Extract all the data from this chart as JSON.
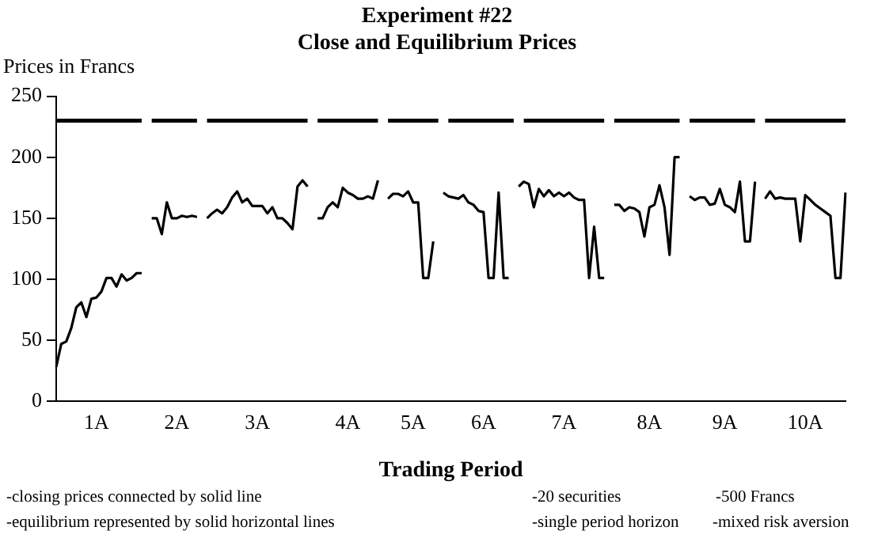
{
  "chart_data": {
    "type": "line",
    "title": "Experiment #22",
    "subtitle": "Close and Equilibrium Prices",
    "ylabel": "Prices in Francs",
    "xlabel": "Trading Period",
    "categories": [
      null,
      null,
      null,
      null,
      null,
      null,
      null,
      null,
      "1A",
      null,
      null,
      null,
      null,
      null,
      null,
      null,
      null,
      null,
      null,
      null,
      null,
      null,
      null,
      null,
      "2A",
      null,
      null,
      null,
      null,
      null,
      null,
      null,
      null,
      null,
      null,
      null,
      null,
      null,
      null,
      null,
      "3A",
      null,
      null,
      null,
      null,
      null,
      null,
      null,
      null,
      null,
      null,
      null,
      null,
      null,
      null,
      null,
      null,
      null,
      "4A",
      null,
      null,
      null,
      null,
      null,
      null,
      null,
      null,
      null,
      null,
      null,
      null,
      "5A",
      null,
      null,
      null,
      null,
      null,
      null,
      null,
      null,
      null,
      null,
      null,
      null,
      null,
      "6A",
      null,
      null,
      null,
      null,
      null,
      null,
      null,
      null,
      null,
      null,
      null,
      null,
      null,
      null,
      null,
      "7A",
      null,
      null,
      null,
      null,
      null,
      null,
      null,
      null,
      null,
      null,
      null,
      null,
      null,
      null,
      null,
      null,
      "8A",
      null,
      null,
      null,
      null,
      null,
      null,
      null,
      null,
      null,
      null,
      null,
      null,
      null,
      null,
      "9A",
      null,
      null,
      null,
      null,
      null,
      null,
      null,
      null,
      null,
      null,
      null,
      null,
      null,
      null,
      null,
      "10A",
      null,
      null,
      null,
      null,
      null,
      null,
      null,
      null
    ],
    "ylim": [
      0,
      250
    ],
    "yticks": [
      0,
      50,
      100,
      150,
      200,
      250
    ],
    "grid": false,
    "legend": false,
    "marker": "none",
    "line_style": "solid",
    "series": [
      {
        "color": "#000000",
        "values": [
          230,
          230,
          230,
          230,
          230,
          230,
          230,
          230,
          230,
          230,
          230,
          230,
          230,
          230,
          230,
          230,
          230,
          230,
          null,
          230,
          230,
          230,
          230,
          230,
          230,
          230,
          230,
          230,
          230,
          null,
          230,
          230,
          230,
          230,
          230,
          230,
          230,
          230,
          230,
          230,
          230,
          230,
          230,
          230,
          230,
          230,
          230,
          230,
          230,
          230,
          230,
          null,
          230,
          230,
          230,
          230,
          230,
          230,
          230,
          230,
          230,
          230,
          230,
          230,
          230,
          null,
          230,
          230,
          230,
          230,
          230,
          230,
          230,
          230,
          230,
          230,
          230,
          null,
          230,
          230,
          230,
          230,
          230,
          230,
          230,
          230,
          230,
          230,
          230,
          230,
          230,
          230,
          null,
          230,
          230,
          230,
          230,
          230,
          230,
          230,
          230,
          230,
          230,
          230,
          230,
          230,
          230,
          230,
          230,
          230,
          null,
          230,
          230,
          230,
          230,
          230,
          230,
          230,
          230,
          230,
          230,
          230,
          230,
          230,
          230,
          null,
          230,
          230,
          230,
          230,
          230,
          230,
          230,
          230,
          230,
          230,
          230,
          230,
          230,
          230,
          null,
          230,
          230,
          230,
          230,
          230,
          230,
          230,
          230,
          230,
          230,
          230,
          230,
          230,
          230,
          230,
          230,
          230
        ]
      },
      {
        "color": "#000000",
        "values": [
          28,
          47,
          49,
          60,
          77,
          81,
          69,
          84,
          85,
          90,
          101,
          101,
          94,
          104,
          99,
          101,
          105,
          105,
          null,
          150,
          150,
          137,
          163,
          150,
          150,
          152,
          151,
          152,
          151,
          null,
          150,
          154,
          157,
          154,
          159,
          167,
          172,
          163,
          166,
          160,
          160,
          160,
          154,
          159,
          150,
          150,
          146,
          141,
          176,
          181,
          176,
          null,
          150,
          150,
          159,
          163,
          159,
          175,
          171,
          169,
          166,
          166,
          168,
          166,
          181,
          null,
          166,
          170,
          170,
          168,
          172,
          163,
          163,
          101,
          101,
          131,
          null,
          171,
          168,
          167,
          166,
          169,
          163,
          161,
          156,
          155,
          101,
          101,
          171,
          101,
          101,
          null,
          176,
          180,
          178,
          159,
          174,
          168,
          173,
          168,
          171,
          168,
          171,
          167,
          165,
          165,
          101,
          143,
          101,
          101,
          null,
          161,
          161,
          156,
          159,
          158,
          155,
          135,
          159,
          161,
          177,
          159,
          120,
          200,
          200,
          null,
          168,
          165,
          167,
          167,
          161,
          162,
          174,
          161,
          159,
          155,
          180,
          131,
          131,
          180,
          null,
          166,
          172,
          166,
          167,
          166,
          166,
          166,
          131,
          169,
          165,
          161,
          158,
          155,
          152,
          101,
          101,
          171
        ]
      }
    ],
    "annotations": [
      "-closing  prices connected by solid line",
      "-equilibrium represented by solid horizontal lines",
      "-20  securities",
      "-500 Francs",
      "-single period horizon",
      "-mixed risk aversion"
    ]
  }
}
